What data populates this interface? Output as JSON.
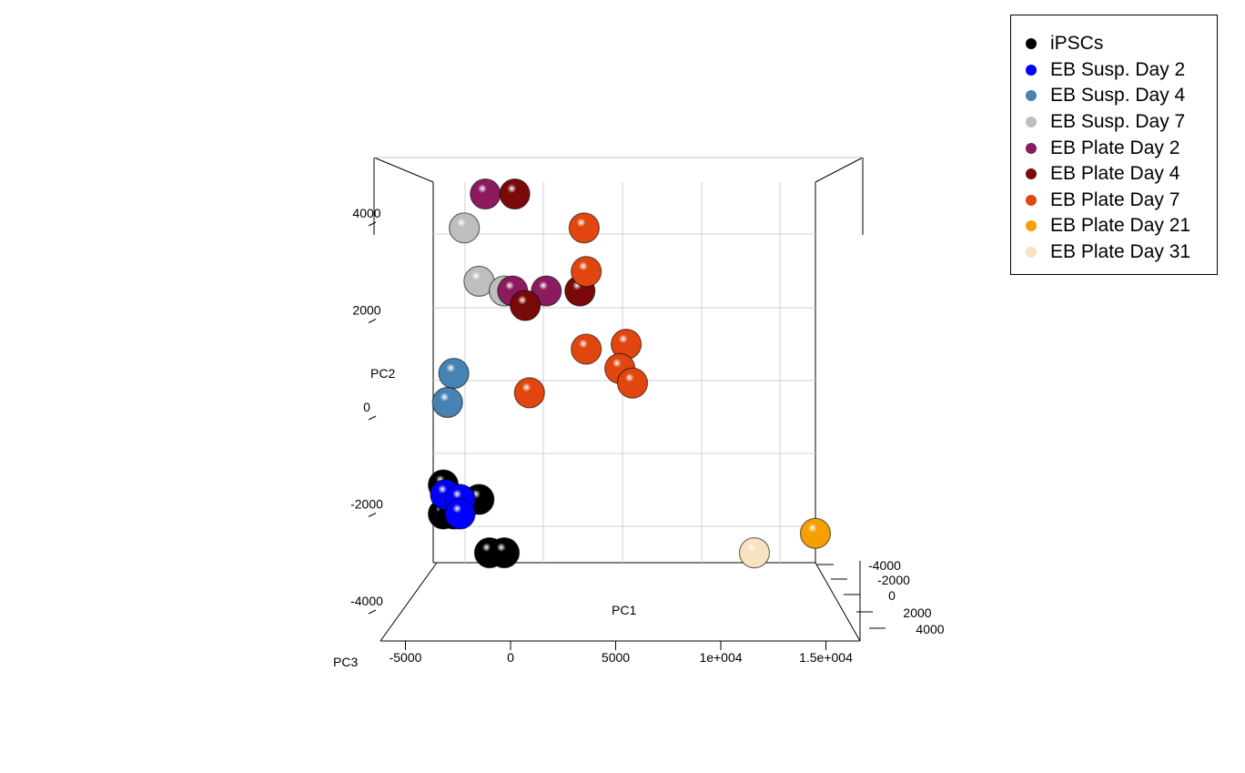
{
  "chart_data": {
    "type": "scatter",
    "subtype": "3d-scatter",
    "axes": {
      "x": {
        "label": "PC1",
        "ticks": [
          "-5000",
          "0",
          "5000",
          "1e+004",
          "1.5e+004"
        ],
        "tick_values": [
          -5000,
          0,
          5000,
          10000,
          15000
        ]
      },
      "y": {
        "label": "PC2",
        "ticks": [
          "-4000",
          "-2000",
          "0",
          "2000",
          "4000"
        ],
        "tick_values": [
          -4000,
          -2000,
          0,
          2000,
          4000
        ]
      },
      "z": {
        "label": "PC3",
        "ticks": [
          "-4000",
          "-2000",
          "0",
          "2000",
          "4000"
        ],
        "tick_values": [
          -4000,
          -2000,
          0,
          2000,
          4000
        ]
      }
    },
    "grid": true,
    "legend_position": "top-right",
    "series": [
      {
        "name": "iPSCs",
        "color": "#000000",
        "points": [
          {
            "x": -3200,
            "y": -1400
          },
          {
            "x": -1500,
            "y": -1700
          },
          {
            "x": -3200,
            "y": -2000
          },
          {
            "x": -2700,
            "y": -2000
          },
          {
            "x": -1000,
            "y": -2800
          },
          {
            "x": -300,
            "y": -2800
          }
        ]
      },
      {
        "name": "EB Susp. Day 2",
        "color": "#0000ff",
        "points": [
          {
            "x": -3100,
            "y": -1600
          },
          {
            "x": -2400,
            "y": -1700
          },
          {
            "x": -2400,
            "y": -2000
          }
        ]
      },
      {
        "name": "EB Susp. Day 4",
        "color": "#4682b4",
        "points": [
          {
            "x": -2700,
            "y": 900
          },
          {
            "x": -3000,
            "y": 300
          }
        ]
      },
      {
        "name": "EB Susp. Day 7",
        "color": "#bebebe",
        "points": [
          {
            "x": -2200,
            "y": 3900
          },
          {
            "x": -1500,
            "y": 2800
          },
          {
            "x": -300,
            "y": 2600
          }
        ]
      },
      {
        "name": "EB Plate Day 2",
        "color": "#8b1a5f",
        "points": [
          {
            "x": -1200,
            "y": 4600
          },
          {
            "x": 100,
            "y": 2600
          },
          {
            "x": 1700,
            "y": 2600
          }
        ]
      },
      {
        "name": "EB Plate Day 4",
        "color": "#7a0a0a",
        "points": [
          {
            "x": 200,
            "y": 4600
          },
          {
            "x": 700,
            "y": 2300
          },
          {
            "x": 3300,
            "y": 2600
          }
        ]
      },
      {
        "name": "EB Plate Day 7",
        "color": "#e0460e",
        "points": [
          {
            "x": 3500,
            "y": 3900
          },
          {
            "x": 3600,
            "y": 3000
          },
          {
            "x": 3600,
            "y": 1400
          },
          {
            "x": 5500,
            "y": 1500
          },
          {
            "x": 5200,
            "y": 1000
          },
          {
            "x": 5800,
            "y": 700
          },
          {
            "x": 900,
            "y": 500
          }
        ]
      },
      {
        "name": "EB Plate Day 21",
        "color": "#f5a000",
        "points": [
          {
            "x": 14500,
            "y": -2400
          }
        ]
      },
      {
        "name": "EB Plate Day 31",
        "color": "#f7e3c0",
        "points": [
          {
            "x": 11600,
            "y": -2800
          }
        ]
      }
    ]
  }
}
